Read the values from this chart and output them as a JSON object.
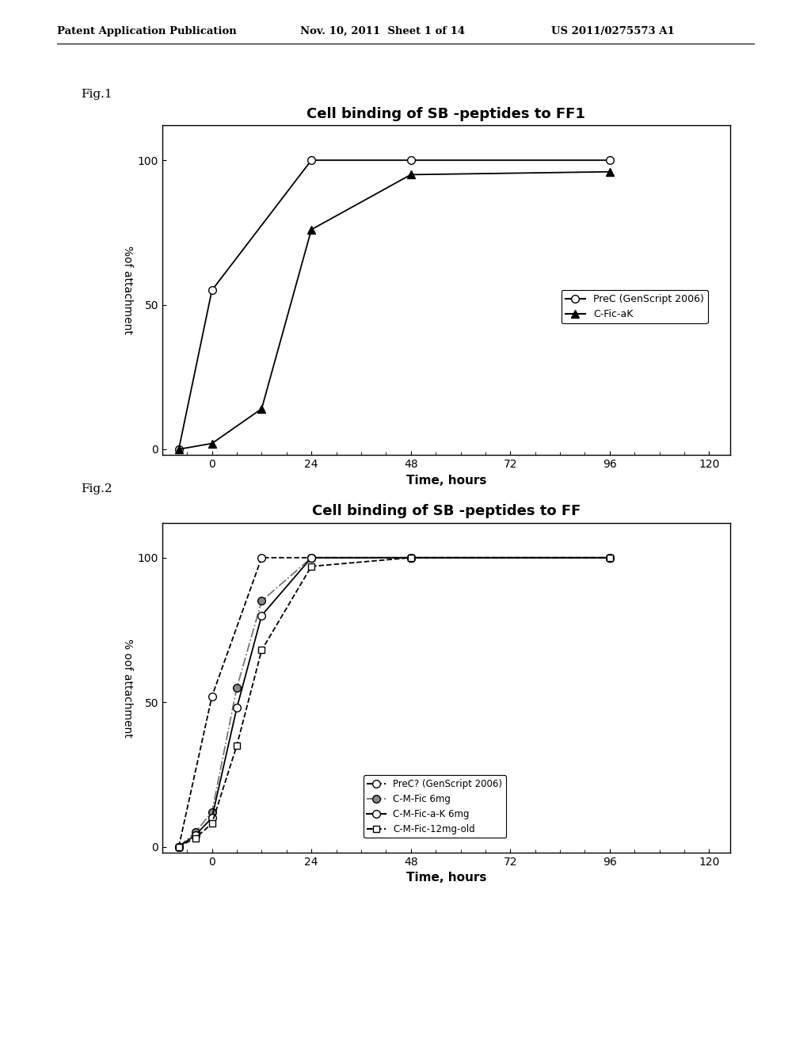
{
  "header_left": "Patent Application Publication",
  "header_mid": "Nov. 10, 2011  Sheet 1 of 14",
  "header_right": "US 2011/0275573 A1",
  "fig1_label": "Fig.1",
  "fig1_title": "Cell binding of SB -peptides to FF1",
  "fig1_xlabel": "Time, hours",
  "fig1_ylabel": "%of attachment",
  "fig1_xlim": [
    -12,
    125
  ],
  "fig1_ylim": [
    -2,
    112
  ],
  "fig1_xticks": [
    0,
    24,
    48,
    72,
    96,
    120
  ],
  "fig1_yticks": [
    0,
    50,
    100
  ],
  "fig1_series": [
    {
      "label": "PreC (GenScript 2006)",
      "x": [
        -8,
        0,
        24,
        48,
        96
      ],
      "y": [
        0,
        55,
        100,
        100,
        100
      ],
      "marker": "o",
      "linestyle": "-",
      "color": "#000000",
      "markerface": "#ffffff",
      "markersize": 7
    },
    {
      "label": "C-Fic-aK",
      "x": [
        -8,
        0,
        12,
        24,
        48,
        96
      ],
      "y": [
        0,
        2,
        14,
        76,
        95,
        96
      ],
      "marker": "^",
      "linestyle": "-",
      "color": "#000000",
      "markerface": "#000000",
      "markersize": 7
    }
  ],
  "fig2_label": "Fig.2",
  "fig2_title": "Cell binding of SB -peptides to FF",
  "fig2_xlabel": "Time, hours",
  "fig2_ylabel": "% oof attachment",
  "fig2_xlim": [
    -12,
    125
  ],
  "fig2_ylim": [
    -2,
    112
  ],
  "fig2_xticks": [
    0,
    24,
    48,
    72,
    96,
    120
  ],
  "fig2_yticks": [
    0,
    50,
    100
  ],
  "fig2_series": [
    {
      "label": "PreC? (GenScript 2006)",
      "x": [
        -8,
        0,
        12,
        24,
        48,
        96
      ],
      "y": [
        0,
        52,
        100,
        100,
        100,
        100
      ],
      "marker": "o",
      "linestyle": "--",
      "color": "#000000",
      "markerface": "#ffffff",
      "markersize": 7
    },
    {
      "label": "C-M-Fic 6mg",
      "x": [
        -8,
        -4,
        0,
        6,
        12,
        24,
        48,
        96
      ],
      "y": [
        0,
        5,
        12,
        55,
        85,
        100,
        100,
        100
      ],
      "marker": "o",
      "linestyle": "-.",
      "color": "#777777",
      "markerface": "#888888",
      "markersize": 7
    },
    {
      "label": "C-M-Fic-a-K 6mg",
      "x": [
        -8,
        -4,
        0,
        6,
        12,
        24,
        48,
        96
      ],
      "y": [
        0,
        4,
        10,
        48,
        80,
        100,
        100,
        100
      ],
      "marker": "o",
      "linestyle": "-",
      "color": "#000000",
      "markerface": "#ffffff",
      "markersize": 7
    },
    {
      "label": "C-M-Fic-12mg-old",
      "x": [
        -8,
        -4,
        0,
        6,
        12,
        24,
        48,
        96
      ],
      "y": [
        0,
        3,
        8,
        35,
        68,
        97,
        100,
        100
      ],
      "marker": "s",
      "linestyle": "--",
      "color": "#000000",
      "markerface": "#ffffff",
      "markersize": 6
    }
  ]
}
